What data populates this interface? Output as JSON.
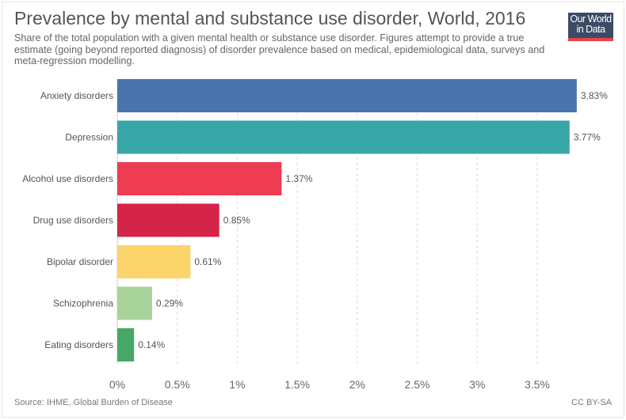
{
  "header": {
    "title": "Prevalence by mental and substance use disorder, World, 2016",
    "subtitle": "Share of the total population with a given mental health or substance use disorder. Figures attempt to provide a true estimate (going beyond reported diagnosis) of disorder prevalence based on medical, epidemiological data, surveys and meta-regression modelling.",
    "logo_line1": "Our World",
    "logo_line2": "in Data"
  },
  "footer": {
    "source": "Source: IHME, Global Burden of Disease",
    "license": "CC BY-SA"
  },
  "chart_data": {
    "type": "bar",
    "orientation": "horizontal",
    "title": "Prevalence by mental and substance use disorder, World, 2016",
    "categories": [
      "Anxiety disorders",
      "Depression",
      "Alcohol use disorders",
      "Drug use disorders",
      "Bipolar disorder",
      "Schizophrenia",
      "Eating disorders"
    ],
    "values": [
      3.83,
      3.77,
      1.37,
      0.85,
      0.61,
      0.29,
      0.14
    ],
    "value_labels": [
      "3.83%",
      "3.77%",
      "1.37%",
      "0.85%",
      "0.61%",
      "0.29%",
      "0.14%"
    ],
    "colors": [
      "#4a74ad",
      "#38a5a6",
      "#ee3c52",
      "#d52449",
      "#fbd56c",
      "#a8d49b",
      "#47a865"
    ],
    "xticks": [
      0,
      0.5,
      1,
      1.5,
      2,
      2.5,
      3,
      3.5
    ],
    "xtick_labels": [
      "0%",
      "0.5%",
      "1%",
      "1.5%",
      "2%",
      "2.5%",
      "3%",
      "3.5%"
    ],
    "xlim": [
      0,
      3.83
    ],
    "xlabel": "",
    "ylabel": "",
    "grid": true
  }
}
